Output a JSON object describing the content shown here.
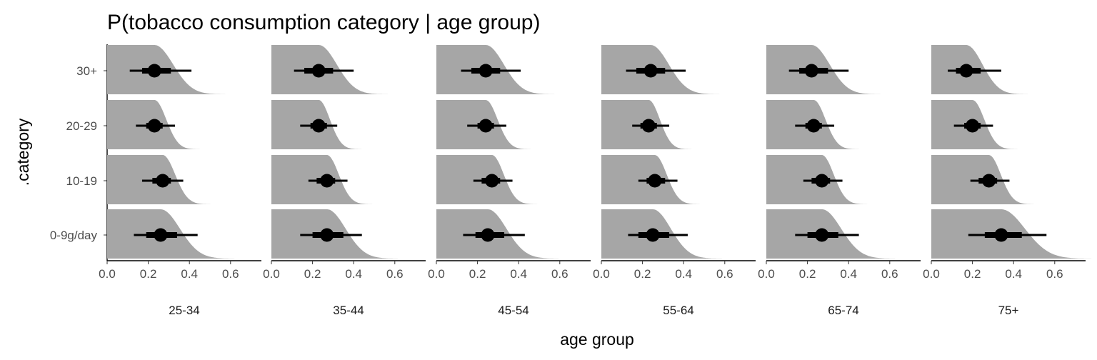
{
  "chart_data": {
    "type": "slab-interval",
    "title": "P(tobacco consumption category | age group)",
    "xlabel": "age group",
    "ylabel": ".category",
    "xlim": [
      0,
      0.75
    ],
    "x_ticks": [
      "0.0",
      "0.2",
      "0.4",
      "0.6"
    ],
    "x_tick_values": [
      0,
      0.2,
      0.4,
      0.6
    ],
    "categories": [
      "30+",
      "20-29",
      "10-19",
      "0-9g/day"
    ],
    "facets": [
      "25-34",
      "35-44",
      "45-54",
      "55-64",
      "65-74",
      "75+"
    ],
    "slab_color": "#a6a6a6",
    "interval_color": "#000000",
    "grid": false,
    "legend": "none",
    "panels": [
      {
        "facet": "25-34",
        "rows": [
          {
            "category": "30+",
            "median": 0.23,
            "inner": [
              0.17,
              0.31
            ],
            "outer": [
              0.11,
              0.41
            ]
          },
          {
            "category": "20-29",
            "median": 0.23,
            "inner": [
              0.19,
              0.27
            ],
            "outer": [
              0.14,
              0.33
            ]
          },
          {
            "category": "10-19",
            "median": 0.27,
            "inner": [
              0.22,
              0.31
            ],
            "outer": [
              0.17,
              0.37
            ]
          },
          {
            "category": "0-9g/day",
            "median": 0.26,
            "inner": [
              0.19,
              0.34
            ],
            "outer": [
              0.13,
              0.44
            ]
          }
        ]
      },
      {
        "facet": "35-44",
        "rows": [
          {
            "category": "30+",
            "median": 0.23,
            "inner": [
              0.16,
              0.3
            ],
            "outer": [
              0.11,
              0.4
            ]
          },
          {
            "category": "20-29",
            "median": 0.23,
            "inner": [
              0.19,
              0.27
            ],
            "outer": [
              0.14,
              0.32
            ]
          },
          {
            "category": "10-19",
            "median": 0.27,
            "inner": [
              0.22,
              0.31
            ],
            "outer": [
              0.18,
              0.37
            ]
          },
          {
            "category": "0-9g/day",
            "median": 0.27,
            "inner": [
              0.2,
              0.35
            ],
            "outer": [
              0.14,
              0.44
            ]
          }
        ]
      },
      {
        "facet": "45-54",
        "rows": [
          {
            "category": "30+",
            "median": 0.24,
            "inner": [
              0.17,
              0.31
            ],
            "outer": [
              0.12,
              0.41
            ]
          },
          {
            "category": "20-29",
            "median": 0.24,
            "inner": [
              0.2,
              0.28
            ],
            "outer": [
              0.15,
              0.34
            ]
          },
          {
            "category": "10-19",
            "median": 0.27,
            "inner": [
              0.22,
              0.31
            ],
            "outer": [
              0.18,
              0.37
            ]
          },
          {
            "category": "0-9g/day",
            "median": 0.25,
            "inner": [
              0.19,
              0.33
            ],
            "outer": [
              0.13,
              0.43
            ]
          }
        ]
      },
      {
        "facet": "55-64",
        "rows": [
          {
            "category": "30+",
            "median": 0.24,
            "inner": [
              0.17,
              0.31
            ],
            "outer": [
              0.12,
              0.41
            ]
          },
          {
            "category": "20-29",
            "median": 0.23,
            "inner": [
              0.19,
              0.27
            ],
            "outer": [
              0.15,
              0.33
            ]
          },
          {
            "category": "10-19",
            "median": 0.26,
            "inner": [
              0.22,
              0.31
            ],
            "outer": [
              0.18,
              0.37
            ]
          },
          {
            "category": "0-9g/day",
            "median": 0.25,
            "inner": [
              0.18,
              0.33
            ],
            "outer": [
              0.13,
              0.42
            ]
          }
        ]
      },
      {
        "facet": "65-74",
        "rows": [
          {
            "category": "30+",
            "median": 0.22,
            "inner": [
              0.16,
              0.3
            ],
            "outer": [
              0.11,
              0.4
            ]
          },
          {
            "category": "20-29",
            "median": 0.23,
            "inner": [
              0.19,
              0.27
            ],
            "outer": [
              0.14,
              0.33
            ]
          },
          {
            "category": "10-19",
            "median": 0.27,
            "inner": [
              0.22,
              0.31
            ],
            "outer": [
              0.18,
              0.37
            ]
          },
          {
            "category": "0-9g/day",
            "median": 0.27,
            "inner": [
              0.2,
              0.35
            ],
            "outer": [
              0.14,
              0.45
            ]
          }
        ]
      },
      {
        "facet": "75+",
        "rows": [
          {
            "category": "30+",
            "median": 0.17,
            "inner": [
              0.12,
              0.24
            ],
            "outer": [
              0.08,
              0.34
            ]
          },
          {
            "category": "20-29",
            "median": 0.2,
            "inner": [
              0.16,
              0.24
            ],
            "outer": [
              0.11,
              0.3
            ]
          },
          {
            "category": "10-19",
            "median": 0.28,
            "inner": [
              0.23,
              0.32
            ],
            "outer": [
              0.19,
              0.38
            ]
          },
          {
            "category": "0-9g/day",
            "median": 0.34,
            "inner": [
              0.26,
              0.44
            ],
            "outer": [
              0.18,
              0.56
            ]
          }
        ]
      }
    ]
  }
}
